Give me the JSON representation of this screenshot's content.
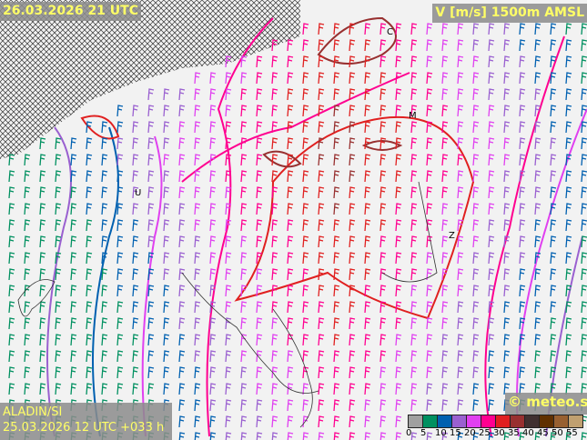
{
  "header": {
    "valid_time": "26.03.2026 21 UTC",
    "variable": "V [m/s] 1500m AMSL"
  },
  "footer": {
    "model": "ALADIN/SI",
    "run": "25.03.2026 12 UTC +033 h",
    "credit": "© meteo.si"
  },
  "legend": {
    "colors": [
      "#a0a0a0",
      "#009060",
      "#0060b0",
      "#9a60d0",
      "#e040f0",
      "#ff0090",
      "#e02020",
      "#983030",
      "#403030",
      "#603000",
      "#986030",
      "#c0a070"
    ],
    "ticks": [
      "0",
      "5",
      "10",
      "15",
      "20",
      "25",
      "30",
      "35",
      "40",
      "45",
      "50",
      "55"
    ]
  },
  "map_labels": [
    "C",
    "M",
    "U",
    "Z"
  ]
}
